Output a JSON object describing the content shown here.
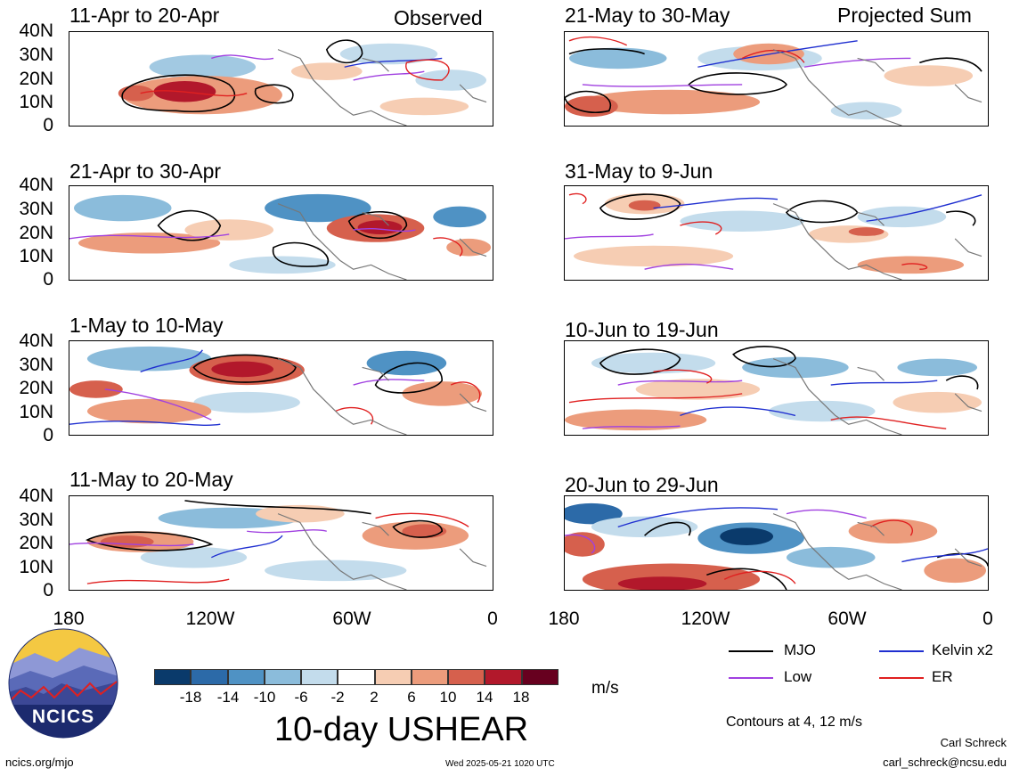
{
  "header": {
    "left_label": "Observed",
    "right_label": "Projected Sum"
  },
  "panels_left": [
    {
      "title": "11-Apr to 20-Apr"
    },
    {
      "title": "21-Apr to 30-Apr"
    },
    {
      "title": "1-May to 10-May"
    },
    {
      "title": "11-May to 20-May"
    }
  ],
  "panels_right": [
    {
      "title": "21-May to 30-May"
    },
    {
      "title": "31-May to 9-Jun"
    },
    {
      "title": "10-Jun to 19-Jun"
    },
    {
      "title": "20-Jun to 29-Jun"
    }
  ],
  "y_axis": {
    "labels": [
      "40N",
      "30N",
      "20N",
      "10N",
      "0"
    ]
  },
  "x_axis": {
    "labels": [
      "180",
      "120W",
      "60W",
      "0"
    ]
  },
  "colorbar": {
    "ticks": [
      "-18",
      "-14",
      "-10",
      "-6",
      "-2",
      "2",
      "6",
      "10",
      "14",
      "18"
    ],
    "colors": [
      "#0a3a6b",
      "#2c6aa8",
      "#4f92c4",
      "#8bbcdb",
      "#c3dcec",
      "#ffffff",
      "#f6cdb3",
      "#ec9c7c",
      "#d6604d",
      "#b2182b",
      "#67001f"
    ],
    "unit": "m/s"
  },
  "legend": [
    {
      "label": "MJO",
      "color": "#000000"
    },
    {
      "label": "Kelvin x2",
      "color": "#1f2fd0"
    },
    {
      "label": "Low",
      "color": "#a040e0"
    },
    {
      "label": "ER",
      "color": "#e02020"
    }
  ],
  "contours_note": "Contours at 4, 12 m/s",
  "main_title": "10-day USHEAR",
  "logo": {
    "text": "NCICS"
  },
  "footer": {
    "url": "ncics.org/mjo",
    "timestamp": "Wed 2025-05-21 1020 UTC",
    "author": "Carl Schreck",
    "email": "carl_schreck@ncsu.edu"
  }
}
